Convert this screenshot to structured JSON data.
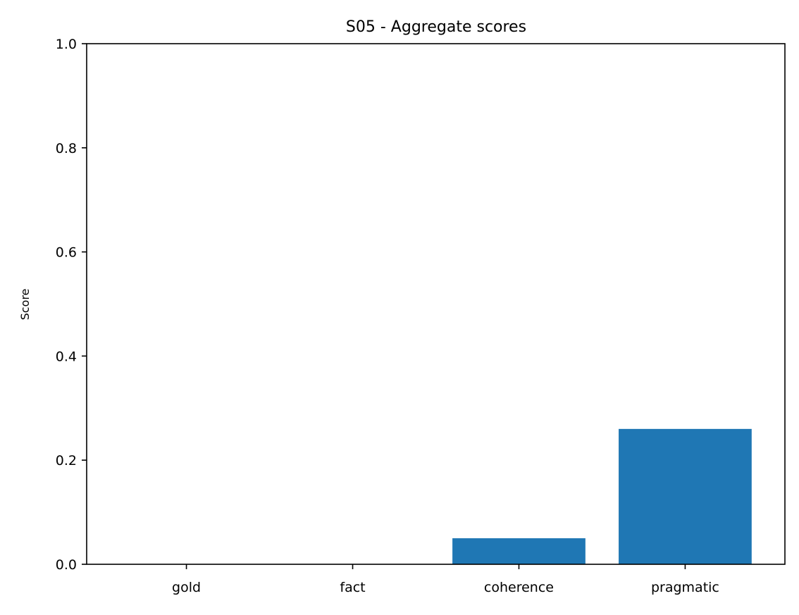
{
  "chart_data": {
    "type": "bar",
    "title": "S05 - Aggregate scores",
    "xlabel": "",
    "ylabel": "Score",
    "categories": [
      "gold",
      "fact",
      "coherence",
      "pragmatic"
    ],
    "values": [
      0.0,
      0.0,
      0.05,
      0.26
    ],
    "ylim": [
      0.0,
      1.0
    ],
    "yticks": [
      0.0,
      0.2,
      0.4,
      0.6,
      0.8,
      1.0
    ],
    "ytick_labels": [
      "0.0",
      "0.2",
      "0.4",
      "0.6",
      "0.8",
      "1.0"
    ],
    "grid": false,
    "bar_color": "#1f77b4"
  }
}
